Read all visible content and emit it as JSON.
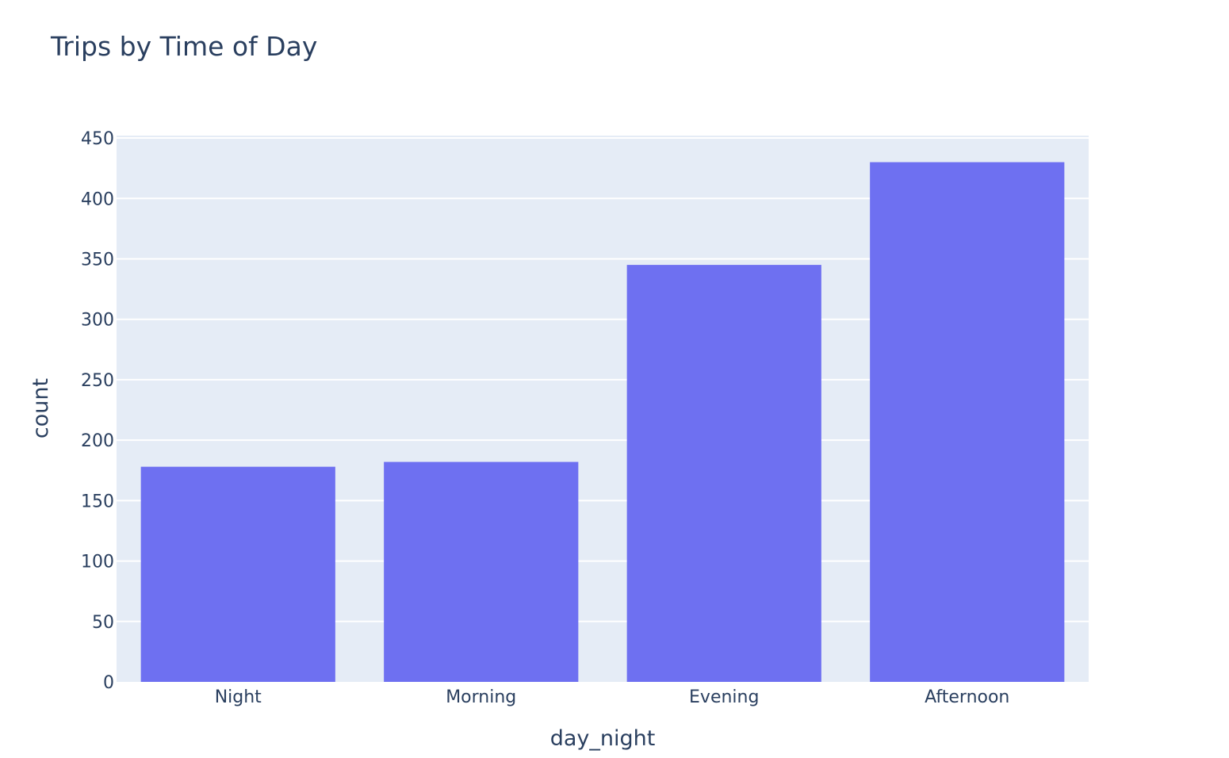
{
  "chart_data": {
    "type": "bar",
    "title": "Trips by Time of Day",
    "xlabel": "day_night",
    "ylabel": "count",
    "categories": [
      "Night",
      "Morning",
      "Evening",
      "Afternoon"
    ],
    "values": [
      178,
      182,
      345,
      430
    ],
    "ylim": [
      0,
      452
    ],
    "yticks": [
      0,
      50,
      100,
      150,
      200,
      250,
      300,
      350,
      400,
      450
    ],
    "grid": true,
    "colors": {
      "bar": "#6e70f1",
      "plot_bg": "#e5ecf6",
      "grid": "#ffffff",
      "text": "#2a3f5f"
    }
  }
}
